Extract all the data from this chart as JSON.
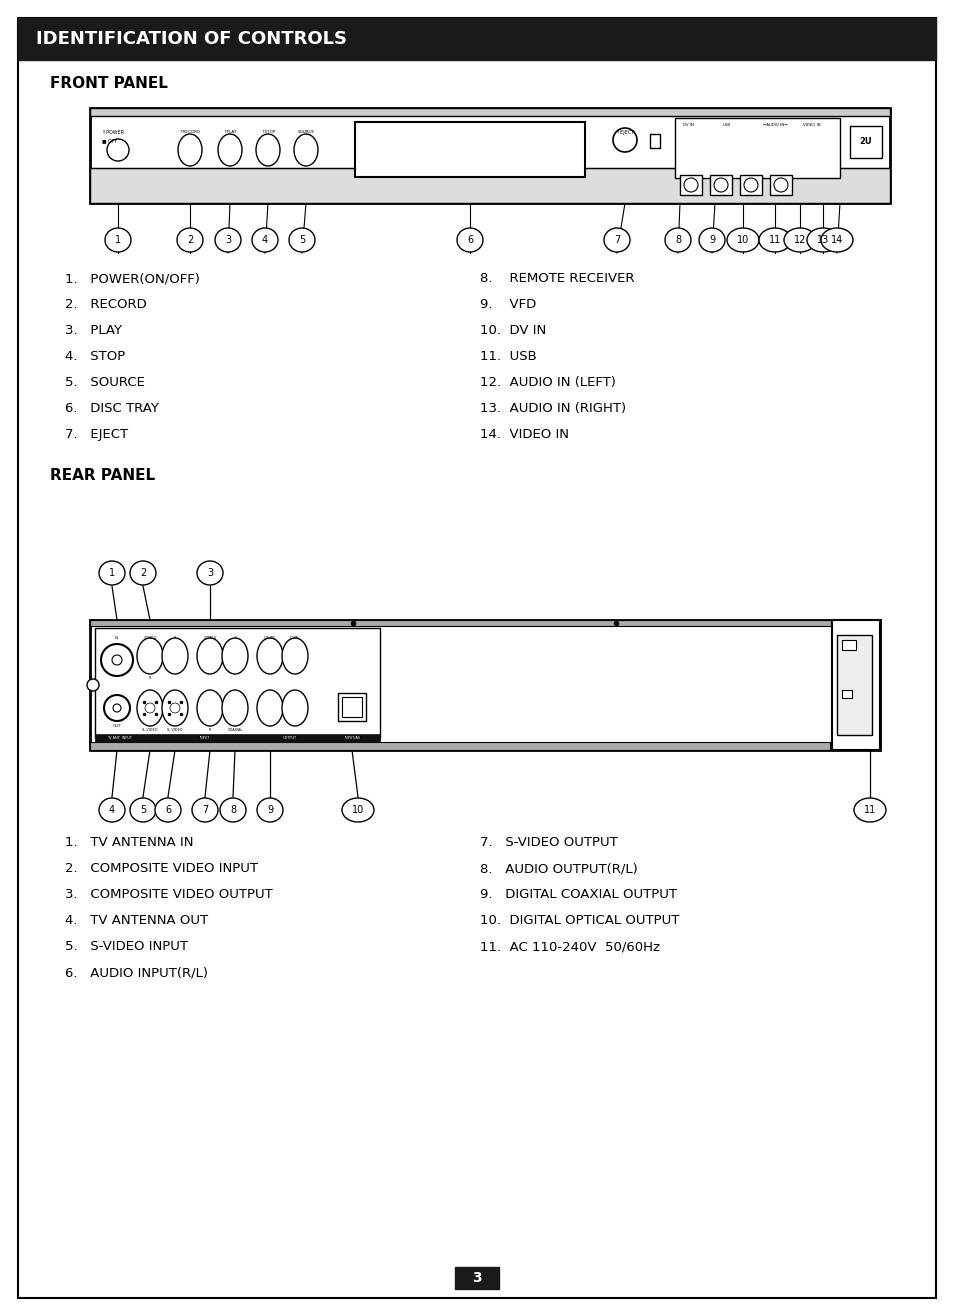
{
  "title": "IDENTIFICATION OF CONTROLS",
  "title_bg": "#1a1a1a",
  "title_color": "#ffffff",
  "page_bg": "#ffffff",
  "section1_label": "FRONT PANEL",
  "section2_label": "REAR PANEL",
  "front_left_items": [
    "1.   POWER(ON/OFF)",
    "2.   RECORD",
    "3.   PLAY",
    "4.   STOP",
    "5.   SOURCE",
    "6.   DISC TRAY",
    "7.   EJECT"
  ],
  "front_right_items": [
    "8.    REMOTE RECEIVER",
    "9.    VFD",
    "10.  DV IN",
    "11.  USB",
    "12.  AUDIO IN (LEFT)",
    "13.  AUDIO IN (RIGHT)",
    "14.  VIDEO IN"
  ],
  "rear_left_items": [
    "1.   TV ANTENNA IN",
    "2.   COMPOSITE VIDEO INPUT",
    "3.   COMPOSITE VIDEO OUTPUT",
    "4.   TV ANTENNA OUT",
    "5.   S-VIDEO INPUT",
    "6.   AUDIO INPUT(R/L)"
  ],
  "rear_right_items": [
    "7.   S-VIDEO OUTPUT",
    "8.   AUDIO OUTPUT(R/L)",
    "9.   DIGITAL COAXIAL OUTPUT",
    "10.  DIGITAL OPTICAL OUTPUT",
    "11.  AC 110-240V  50/60Hz"
  ],
  "page_number": "3"
}
